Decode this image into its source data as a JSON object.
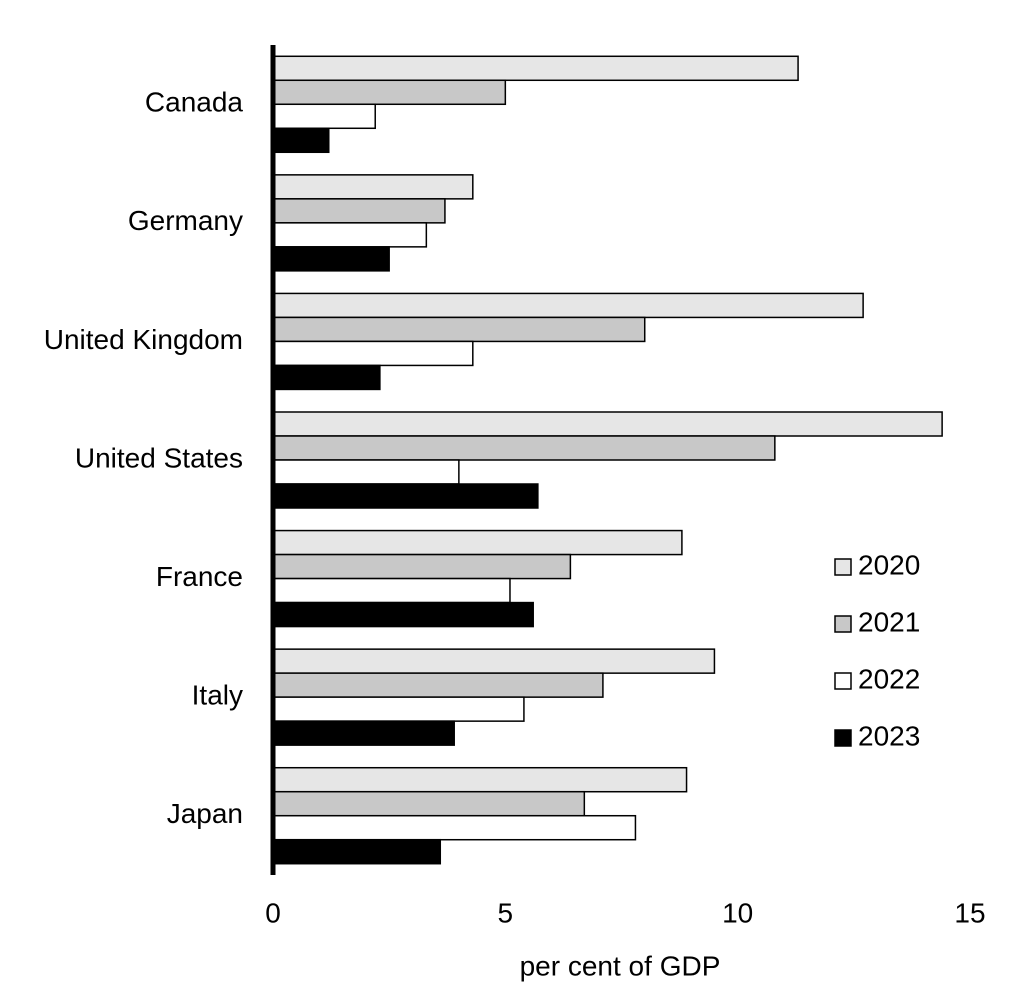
{
  "chart_data": {
    "type": "bar",
    "orientation": "horizontal",
    "categories": [
      "Canada",
      "Germany",
      "United Kingdom",
      "United States",
      "France",
      "Italy",
      "Japan"
    ],
    "series": [
      {
        "name": "2020",
        "color": "#e6e6e6",
        "values": [
          11.3,
          4.3,
          12.7,
          14.4,
          8.8,
          9.5,
          8.9
        ]
      },
      {
        "name": "2021",
        "color": "#c8c8c8",
        "values": [
          5.0,
          3.7,
          8.0,
          10.8,
          6.4,
          7.1,
          6.7
        ]
      },
      {
        "name": "2022",
        "color": "#ffffff",
        "values": [
          2.2,
          3.3,
          4.3,
          4.0,
          5.1,
          5.4,
          7.8
        ]
      },
      {
        "name": "2023",
        "color": "#000000",
        "values": [
          1.2,
          2.5,
          2.3,
          5.7,
          5.6,
          3.9,
          3.6
        ]
      }
    ],
    "xlabel": "per cent of GDP",
    "xlim": [
      0,
      15
    ],
    "xticks": [
      0,
      5,
      10,
      15
    ],
    "legend": "lower right",
    "grid": false
  }
}
